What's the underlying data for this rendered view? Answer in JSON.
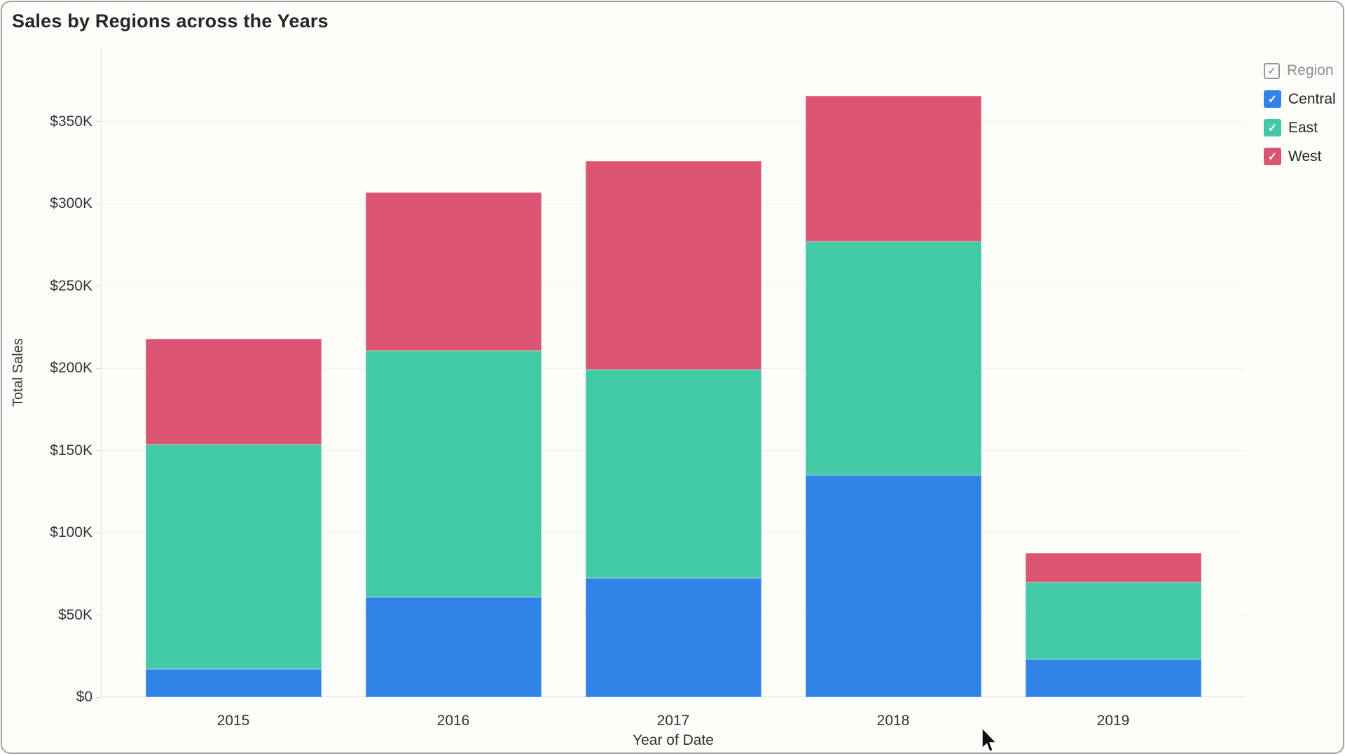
{
  "title": "Sales by Regions across the Years",
  "chart_data": {
    "type": "bar",
    "stacked": true,
    "title": "Sales by Regions across the Years",
    "xlabel": "Year of Date",
    "ylabel": "Total Sales",
    "categories": [
      "2015",
      "2016",
      "2017",
      "2018",
      "2019"
    ],
    "series": [
      {
        "name": "Central",
        "color": "#3283E8",
        "values": [
          17000,
          61000,
          72500,
          135000,
          23000
        ]
      },
      {
        "name": "East",
        "color": "#42C9A5",
        "values": [
          136500,
          149500,
          126500,
          142000,
          47000
        ]
      },
      {
        "name": "West",
        "color": "#DB5573",
        "values": [
          64500,
          96500,
          127000,
          88500,
          17500
        ]
      }
    ],
    "stack_order_bottom_to_top": [
      "Central",
      "East",
      "West"
    ],
    "totals": [
      218000,
      307000,
      326000,
      365500,
      87500
    ],
    "ylim": [
      0,
      395000
    ],
    "yticks": [
      {
        "value": 0,
        "label": "$0"
      },
      {
        "value": 50000,
        "label": "$50K"
      },
      {
        "value": 100000,
        "label": "$100K"
      },
      {
        "value": 150000,
        "label": "$150K"
      },
      {
        "value": 200000,
        "label": "$200K"
      },
      {
        "value": 250000,
        "label": "$250K"
      },
      {
        "value": 300000,
        "label": "$300K"
      },
      {
        "value": 350000,
        "label": "$350K"
      }
    ],
    "grid": true,
    "legend_position": "top-right"
  },
  "legend": {
    "header": {
      "label": "Region",
      "checked": true
    },
    "items": [
      {
        "label": "Central",
        "color": "#3283E8",
        "checked": true
      },
      {
        "label": "East",
        "color": "#42C9A5",
        "checked": true
      },
      {
        "label": "West",
        "color": "#DB5573",
        "checked": true
      }
    ],
    "check_glyph": "✓"
  },
  "colors": {
    "background": "#FDFDFA",
    "card_border": "#A3A3A3",
    "gridline": "#F1F1EE",
    "axis_line": "#DDDDDA",
    "tick_text": "#333333",
    "title_text": "#262626",
    "legend_header_text": "#8E8E8E"
  },
  "cursor": "arrow"
}
